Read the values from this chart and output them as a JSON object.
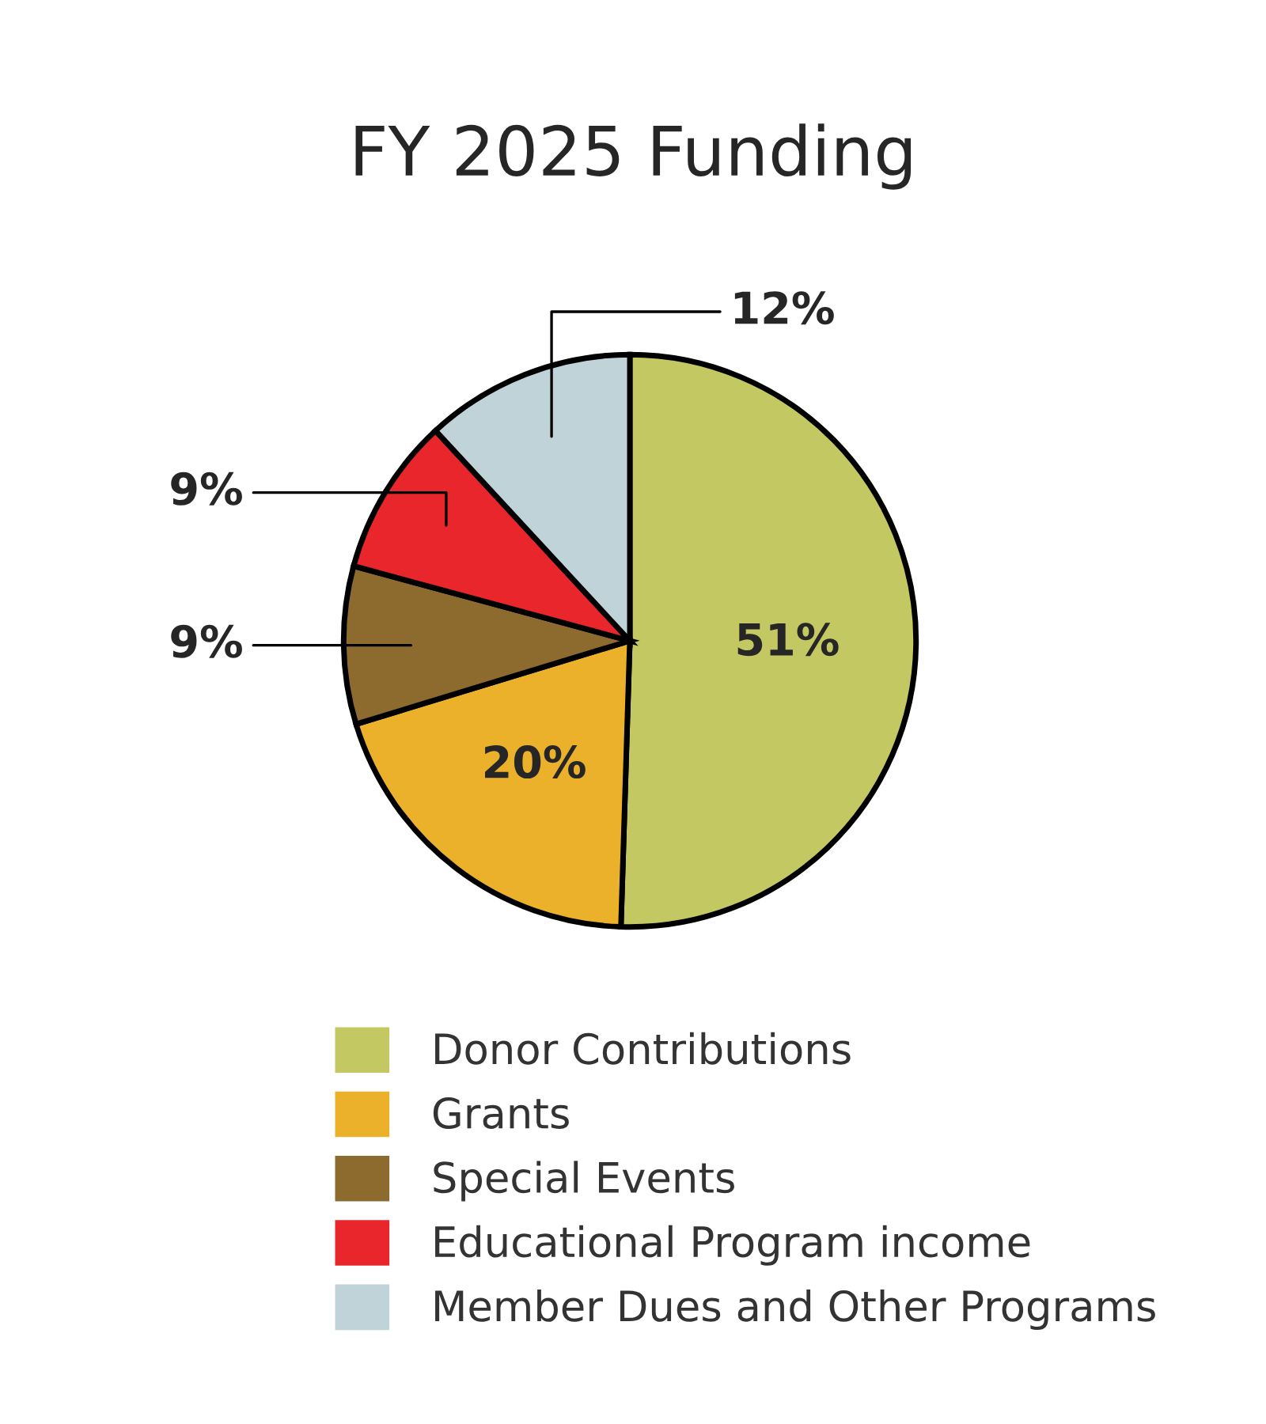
{
  "chart_data": {
    "type": "pie",
    "title": "FY 2025 Funding",
    "categories": [
      "Donor Contributions",
      "Grants",
      "Special Events",
      "Educational Program income",
      "Member Dues and Other Programs"
    ],
    "values": [
      51,
      20,
      9,
      9,
      12
    ],
    "colors": [
      "#c3c862",
      "#ecb12b",
      "#8d6a2e",
      "#e8262b",
      "#bfd3d8"
    ],
    "value_labels": [
      "51%",
      "20%",
      "9%",
      "9%",
      "12%"
    ],
    "legend": "bottom"
  }
}
